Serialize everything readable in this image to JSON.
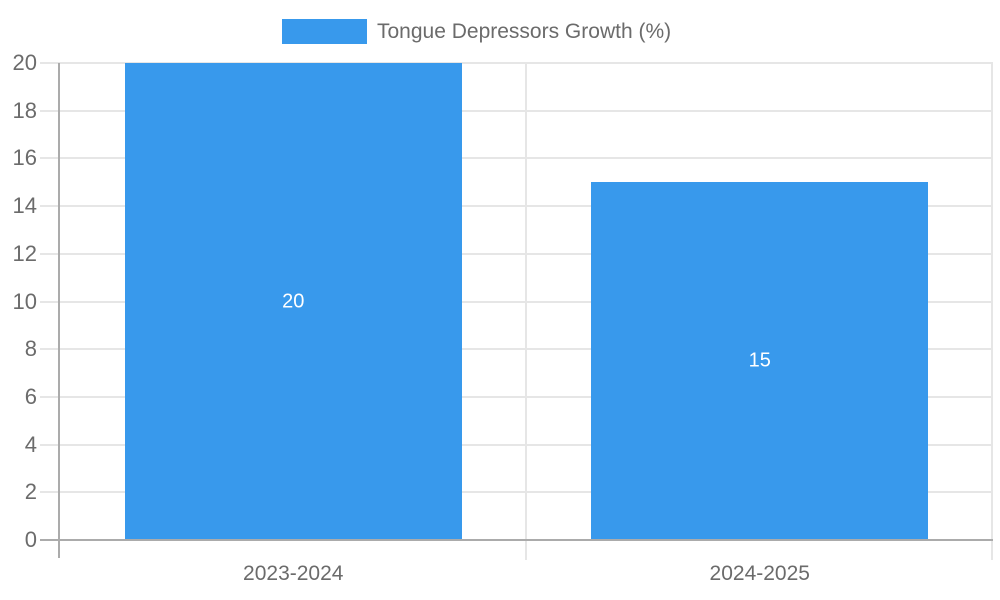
{
  "legend": {
    "label": "Tongue Depressors Growth (%)"
  },
  "colors": {
    "bar": "#3899ec",
    "grid": "#e6e6e6",
    "axis": "#ababab",
    "text": "#6b6b6b",
    "data_label": "#ffffff",
    "background": "#ffffff"
  },
  "chart_data": {
    "type": "bar",
    "title": "Tongue Depressors Growth (%)",
    "categories": [
      "2023-2024",
      "2024-2025"
    ],
    "series": [
      {
        "name": "Tongue Depressors Growth (%)",
        "values": [
          20,
          15
        ]
      }
    ],
    "data_labels": [
      "20",
      "15"
    ],
    "ytick_labels": [
      "0",
      "2",
      "4",
      "6",
      "8",
      "10",
      "12",
      "14",
      "16",
      "18",
      "20"
    ],
    "xlabel": "",
    "ylabel": "",
    "ylim": [
      0,
      20
    ],
    "ytick_step": 2,
    "grid": true,
    "legend_position": "top"
  }
}
